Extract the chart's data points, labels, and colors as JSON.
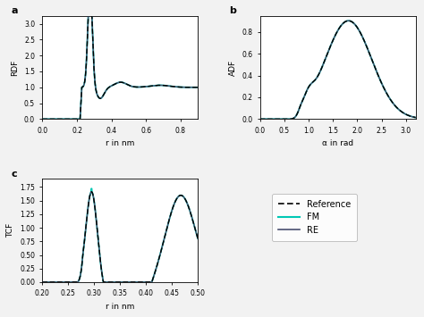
{
  "fig_width": 4.74,
  "fig_height": 3.55,
  "dpi": 100,
  "background_color": "#f2f2f2",
  "panel_a": {
    "label": "a",
    "xlabel": "r in nm",
    "ylabel": "RDF",
    "xlim": [
      0.0,
      0.9
    ],
    "ylim": [
      0.0,
      3.25
    ],
    "xticks": [
      0.0,
      0.2,
      0.4,
      0.6,
      0.8
    ],
    "yticks": [
      0.0,
      0.5,
      1.0,
      1.5,
      2.0,
      2.5,
      3.0
    ]
  },
  "panel_b": {
    "label": "b",
    "xlabel": "α in rad",
    "ylabel": "ADF",
    "xlim": [
      0.0,
      3.2
    ],
    "ylim": [
      0.0,
      0.95
    ],
    "xticks": [
      0.0,
      0.5,
      1.0,
      1.5,
      2.0,
      2.5,
      3.0
    ],
    "yticks": [
      0.0,
      0.2,
      0.4,
      0.6,
      0.8
    ]
  },
  "panel_c": {
    "label": "c",
    "xlabel": "r in nm",
    "ylabel": "TCF",
    "xlim": [
      0.2,
      0.5
    ],
    "ylim": [
      0.0,
      1.9
    ],
    "xticks": [
      0.2,
      0.25,
      0.3,
      0.35,
      0.4,
      0.45,
      0.5
    ],
    "yticks": [
      0.0,
      0.25,
      0.5,
      0.75,
      1.0,
      1.25,
      1.5,
      1.75
    ]
  },
  "colors": {
    "reference": "#000000",
    "fm": "#00c8b4",
    "re": "#4a5070"
  },
  "legend_labels": [
    "Reference",
    "FM",
    "RE"
  ]
}
